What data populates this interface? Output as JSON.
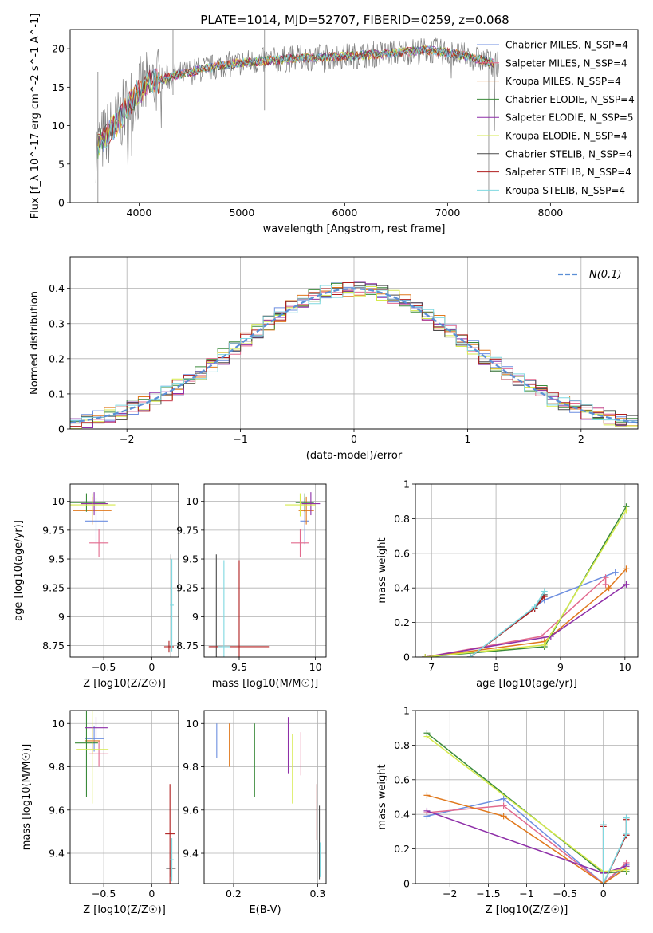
{
  "figure": {
    "title": "PLATE=1014, MJD=52707, FIBERID=0259, z=0.068"
  },
  "model_colors": {
    "Chabrier MILES": "#6c8ee0",
    "Salpeter MILES": "#e26a8e",
    "Kroupa MILES": "#e0781c",
    "Chabrier ELODIE": "#3a8a3a",
    "Salpeter ELODIE": "#8e2fa8",
    "Kroupa ELODIE": "#d6ea4c",
    "Chabrier STELIB": "#4a4a4a",
    "Salpeter STELIB": "#b01e1e",
    "Kroupa STELIB": "#7fd8e0"
  },
  "chart_data": [
    {
      "id": "spectrum",
      "type": "line",
      "title": "PLATE=1014, MJD=52707, FIBERID=0259, z=0.068",
      "xlabel": "wavelength [Angstrom, rest frame]",
      "ylabel": "Flux [f_λ 10^-17 erg cm^-2 s^-1 A^-1]",
      "xlim": [
        3330,
        8850
      ],
      "ylim": [
        0,
        22.5
      ],
      "xticks": [
        4000,
        5000,
        6000,
        7000,
        8000
      ],
      "yticks": [
        0,
        5,
        10,
        15,
        20
      ],
      "grid": false,
      "legend_position": "top-right",
      "data_continuum": {
        "x": [
          3580,
          3700,
          3800,
          3900,
          4000,
          4100,
          4300,
          4500,
          4800,
          5000,
          5300,
          5600,
          6000,
          6300,
          6600,
          6800,
          7000,
          7200,
          7400,
          7500
        ],
        "y": [
          7.0,
          9.0,
          10.5,
          13.0,
          14.5,
          15.5,
          16.3,
          17.0,
          17.8,
          18.2,
          18.5,
          18.8,
          19.0,
          19.3,
          19.6,
          19.8,
          19.5,
          19.0,
          18.3,
          17.8
        ]
      },
      "series": [
        {
          "name": "Chabrier MILES",
          "n_ssp": 4
        },
        {
          "name": "Salpeter MILES",
          "n_ssp": 4
        },
        {
          "name": "Kroupa MILES",
          "n_ssp": 4
        },
        {
          "name": "Chabrier ELODIE",
          "n_ssp": 4
        },
        {
          "name": "Salpeter ELODIE",
          "n_ssp": 5
        },
        {
          "name": "Kroupa ELODIE",
          "n_ssp": 4
        },
        {
          "name": "Chabrier STELIB",
          "n_ssp": 4
        },
        {
          "name": "Salpeter STELIB",
          "n_ssp": 4
        },
        {
          "name": "Kroupa STELIB",
          "n_ssp": 4
        }
      ],
      "legend_labels": [
        "Chabrier MILES, N_SSP=4",
        "Salpeter MILES, N_SSP=4",
        "Kroupa MILES, N_SSP=4",
        "Chabrier ELODIE, N_SSP=4",
        "Salpeter ELODIE, N_SSP=5",
        "Kroupa ELODIE, N_SSP=4",
        "Chabrier STELIB, N_SSP=4",
        "Salpeter STELIB, N_SSP=4",
        "Kroupa STELIB, N_SSP=4"
      ]
    },
    {
      "id": "residuals",
      "type": "line",
      "xlabel": "(data-model)/error",
      "ylabel": "Normed distribution",
      "xlim": [
        -2.5,
        2.5
      ],
      "ylim": [
        0,
        0.49
      ],
      "xticks": [
        -2,
        -1,
        0,
        1,
        2
      ],
      "yticks": [
        0.0,
        0.1,
        0.2,
        0.3,
        0.4
      ],
      "grid": true,
      "legend_position": "top-right",
      "legend_label": "N(0,1)",
      "gaussian": {
        "mu": 0,
        "sigma": 1,
        "style": "dashed"
      }
    },
    {
      "id": "age_vs_Z",
      "type": "scatter",
      "xlabel": "Z [log10(Z/Z☉)]",
      "ylabel": "age [log10(age/yr)]",
      "xlim": [
        -0.85,
        0.28
      ],
      "ylim": [
        8.65,
        10.15
      ],
      "xticks": [
        -0.5,
        0.0
      ],
      "yticks": [
        8.75,
        9.0,
        9.25,
        9.5,
        9.75,
        10.0
      ],
      "grid": true,
      "points": [
        {
          "model": "Chabrier MILES",
          "x": -0.58,
          "y": 9.83,
          "xerr": 0.12,
          "yerr": 0.2
        },
        {
          "model": "Salpeter MILES",
          "x": -0.55,
          "y": 9.64,
          "xerr": 0.1,
          "yerr": 0.12
        },
        {
          "model": "Kroupa MILES",
          "x": -0.62,
          "y": 9.92,
          "xerr": 0.2,
          "yerr": 0.12
        },
        {
          "model": "Chabrier ELODIE",
          "x": -0.68,
          "y": 9.99,
          "xerr": 0.2,
          "yerr": 0.08
        },
        {
          "model": "Salpeter ELODIE",
          "x": -0.6,
          "y": 9.98,
          "xerr": 0.14,
          "yerr": 0.1
        },
        {
          "model": "Kroupa ELODIE",
          "x": -0.62,
          "y": 9.97,
          "xerr": 0.24,
          "yerr": 0.1
        },
        {
          "model": "Chabrier STELIB",
          "x": 0.2,
          "y": 8.74,
          "xerr": 0.03,
          "yerr": 0.8
        },
        {
          "model": "Salpeter STELIB",
          "x": 0.18,
          "y": 8.74,
          "xerr": 0.05,
          "yerr": 0.05
        },
        {
          "model": "Kroupa STELIB",
          "x": 0.21,
          "y": 9.1,
          "xerr": 0.02,
          "yerr": 0.4
        }
      ]
    },
    {
      "id": "age_vs_mass",
      "type": "scatter",
      "xlabel": "mass [log10(M/M☉)]",
      "ylabel": "",
      "xlim": [
        9.27,
        10.07
      ],
      "ylim": [
        8.65,
        10.15
      ],
      "xticks": [
        9.5,
        10.0
      ],
      "yticks": [
        8.75,
        9.0,
        9.25,
        9.5,
        9.75,
        10.0
      ],
      "grid": true,
      "points": [
        {
          "model": "Chabrier MILES",
          "x": 9.93,
          "y": 9.83,
          "xerr": 0.03,
          "yerr": 0.2
        },
        {
          "model": "Salpeter MILES",
          "x": 9.9,
          "y": 9.64,
          "xerr": 0.06,
          "yerr": 0.12
        },
        {
          "model": "Kroupa MILES",
          "x": 9.94,
          "y": 9.92,
          "xerr": 0.05,
          "yerr": 0.12
        },
        {
          "model": "Chabrier ELODIE",
          "x": 9.93,
          "y": 9.99,
          "xerr": 0.06,
          "yerr": 0.08
        },
        {
          "model": "Salpeter ELODIE",
          "x": 9.97,
          "y": 9.98,
          "xerr": 0.06,
          "yerr": 0.1
        },
        {
          "model": "Kroupa ELODIE",
          "x": 9.9,
          "y": 9.97,
          "xerr": 0.1,
          "yerr": 0.1
        },
        {
          "model": "Chabrier STELIB",
          "x": 9.35,
          "y": 8.74,
          "xerr": 0.04,
          "yerr": 0.8
        },
        {
          "model": "Salpeter STELIB",
          "x": 9.5,
          "y": 8.74,
          "xerr": 0.2,
          "yerr": 0.75
        },
        {
          "model": "Kroupa STELIB",
          "x": 9.4,
          "y": 8.74,
          "xerr": 0.04,
          "yerr": 0.75
        }
      ]
    },
    {
      "id": "mass_weight_vs_age",
      "type": "line",
      "xlabel": "age [log10(age/yr)]",
      "ylabel": "mass weight",
      "xlim": [
        6.75,
        10.2
      ],
      "ylim": [
        0,
        1.0
      ],
      "xticks": [
        7,
        8,
        9,
        10
      ],
      "yticks": [
        0.0,
        0.2,
        0.4,
        0.6,
        0.8,
        1.0
      ],
      "grid": true,
      "series": [
        {
          "name": "Chabrier MILES",
          "x": [
            7.6,
            8.75,
            9.85
          ],
          "y": [
            0.0,
            0.33,
            0.49
          ]
        },
        {
          "name": "Salpeter MILES",
          "x": [
            6.9,
            8.7,
            9.7,
            9.7
          ],
          "y": [
            0.0,
            0.12,
            0.46,
            0.42
          ]
        },
        {
          "name": "Kroupa MILES",
          "x": [
            6.9,
            8.75,
            9.75,
            10.02
          ],
          "y": [
            0.0,
            0.09,
            0.4,
            0.51
          ]
        },
        {
          "name": "Chabrier ELODIE",
          "x": [
            6.9,
            8.75,
            10.02
          ],
          "y": [
            0.0,
            0.06,
            0.87
          ]
        },
        {
          "name": "Salpeter ELODIE",
          "x": [
            6.9,
            8.85,
            10.02
          ],
          "y": [
            0.0,
            0.12,
            0.42
          ]
        },
        {
          "name": "Kroupa ELODIE",
          "x": [
            6.9,
            8.75,
            10.02
          ],
          "y": [
            0.0,
            0.07,
            0.85
          ]
        },
        {
          "name": "Chabrier STELIB",
          "x": [
            7.6,
            8.6,
            8.75
          ],
          "y": [
            0.0,
            0.28,
            0.36
          ]
        },
        {
          "name": "Salpeter STELIB",
          "x": [
            7.6,
            8.6,
            8.75
          ],
          "y": [
            0.0,
            0.28,
            0.35
          ]
        },
        {
          "name": "Kroupa STELIB",
          "x": [
            7.6,
            8.6,
            8.75
          ],
          "y": [
            0.0,
            0.29,
            0.38
          ]
        }
      ]
    },
    {
      "id": "mass_vs_Z",
      "type": "scatter",
      "xlabel": "Z [log10(Z/Z☉)]",
      "ylabel": "mass [log10(M/M☉)]",
      "xlim": [
        -0.85,
        0.28
      ],
      "ylim": [
        9.26,
        10.06
      ],
      "xticks": [
        -0.5,
        0.0
      ],
      "yticks": [
        9.4,
        9.6,
        9.8,
        10.0
      ],
      "grid": true,
      "points": [
        {
          "model": "Chabrier MILES",
          "x": -0.6,
          "y": 9.93,
          "xerr": 0.1,
          "yerr": 0.06
        },
        {
          "model": "Salpeter MILES",
          "x": -0.55,
          "y": 9.86,
          "xerr": 0.1,
          "yerr": 0.06
        },
        {
          "model": "Kroupa MILES",
          "x": -0.62,
          "y": 9.92,
          "xerr": 0.08,
          "yerr": 0.06
        },
        {
          "model": "Chabrier ELODIE",
          "x": -0.68,
          "y": 9.91,
          "xerr": 0.12,
          "yerr": 0.25
        },
        {
          "model": "Salpeter ELODIE",
          "x": -0.58,
          "y": 9.98,
          "xerr": 0.12,
          "yerr": 0.05
        },
        {
          "model": "Kroupa ELODIE",
          "x": -0.62,
          "y": 9.88,
          "xerr": 0.17,
          "yerr": 0.25
        },
        {
          "model": "Chabrier STELIB",
          "x": 0.2,
          "y": 9.33,
          "xerr": 0.05,
          "yerr": 0.04
        },
        {
          "model": "Salpeter STELIB",
          "x": 0.19,
          "y": 9.49,
          "xerr": 0.05,
          "yerr": 0.23
        },
        {
          "model": "Kroupa STELIB",
          "x": 0.21,
          "y": 9.37,
          "xerr": 0.02,
          "yerr": 0.1
        }
      ]
    },
    {
      "id": "mass_vs_ebv",
      "type": "scatter",
      "xlabel": "E(B-V)",
      "ylabel": "",
      "xlim": [
        0.165,
        0.31
      ],
      "ylim": [
        9.26,
        10.06
      ],
      "xticks": [
        0.2,
        0.3
      ],
      "yticks": [
        9.4,
        9.6,
        9.8,
        10.0
      ],
      "grid": true,
      "points": [
        {
          "model": "Chabrier MILES",
          "x": 0.18,
          "y": 9.92,
          "yerr": 0.08
        },
        {
          "model": "Salpeter MILES",
          "x": 0.28,
          "y": 9.86,
          "yerr": 0.1
        },
        {
          "model": "Kroupa MILES",
          "x": 0.195,
          "y": 9.9,
          "yerr": 0.1
        },
        {
          "model": "Chabrier ELODIE",
          "x": 0.225,
          "y": 9.83,
          "yerr": 0.17
        },
        {
          "model": "Salpeter ELODIE",
          "x": 0.265,
          "y": 9.9,
          "yerr": 0.13
        },
        {
          "model": "Kroupa ELODIE",
          "x": 0.27,
          "y": 9.79,
          "yerr": 0.16
        },
        {
          "model": "Chabrier STELIB",
          "x": 0.302,
          "y": 9.45,
          "yerr": 0.17
        },
        {
          "model": "Salpeter STELIB",
          "x": 0.299,
          "y": 9.59,
          "yerr": 0.13
        },
        {
          "model": "Kroupa STELIB",
          "x": 0.303,
          "y": 9.37,
          "yerr": 0.08
        }
      ]
    },
    {
      "id": "mass_weight_vs_Z",
      "type": "line",
      "xlabel": "Z [log10(Z/Z☉)]",
      "ylabel": "mass weight",
      "xlim": [
        -2.45,
        0.45
      ],
      "ylim": [
        0,
        1.0
      ],
      "xticks": [
        -2.0,
        -1.5,
        -1.0,
        -0.5,
        0.0
      ],
      "yticks": [
        0.0,
        0.2,
        0.4,
        0.6,
        0.8,
        1.0
      ],
      "grid": true,
      "series": [
        {
          "name": "Chabrier MILES",
          "x": [
            -2.3,
            -1.3,
            0.0,
            0.3
          ],
          "y": [
            0.39,
            0.49,
            0.0,
            0.11
          ]
        },
        {
          "name": "Salpeter MILES",
          "x": [
            -2.3,
            -1.3,
            0.0,
            0.3
          ],
          "y": [
            0.41,
            0.45,
            0.0,
            0.12
          ]
        },
        {
          "name": "Kroupa MILES",
          "x": [
            -2.3,
            -1.3,
            0.0,
            0.3
          ],
          "y": [
            0.51,
            0.39,
            0.0,
            0.09
          ]
        },
        {
          "name": "Chabrier ELODIE",
          "x": [
            -2.3,
            0.0,
            0.3
          ],
          "y": [
            0.87,
            0.06,
            0.07
          ]
        },
        {
          "name": "Salpeter ELODIE",
          "x": [
            -2.3,
            0.0,
            0.3
          ],
          "y": [
            0.42,
            0.06,
            0.1
          ]
        },
        {
          "name": "Kroupa ELODIE",
          "x": [
            -2.3,
            0.0,
            0.3
          ],
          "y": [
            0.85,
            0.07,
            0.08
          ]
        },
        {
          "name": "Chabrier STELIB",
          "x": [
            0.0,
            0.0,
            0.3,
            0.3
          ],
          "y": [
            0.34,
            0.0,
            0.28,
            0.38
          ]
        },
        {
          "name": "Salpeter STELIB",
          "x": [
            0.0,
            0.0,
            0.3,
            0.3
          ],
          "y": [
            0.33,
            0.0,
            0.28,
            0.37
          ]
        },
        {
          "name": "Kroupa STELIB",
          "x": [
            0.0,
            0.0,
            0.3,
            0.3
          ],
          "y": [
            0.34,
            0.0,
            0.29,
            0.38
          ]
        }
      ]
    }
  ]
}
